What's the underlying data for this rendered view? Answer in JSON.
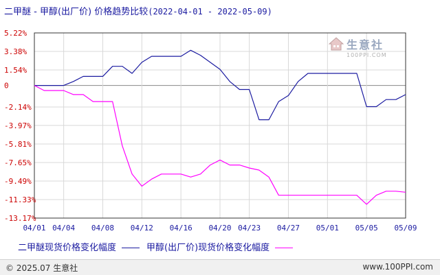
{
  "header": {
    "title": "二甲醚 - 甲醇(出厂价) 价格趋势比较",
    "date_range": "(2022-04-01 - 2022-05-09)"
  },
  "watermark": {
    "brand": "生意社",
    "url": "100PPI.COM",
    "icon": "house-logo-icon"
  },
  "legend": {
    "series1": "二甲醚现货价格变化幅度",
    "series2": "甲醇(出厂价)现货价格变化幅度"
  },
  "footer": {
    "copyright": "© 2025.07 生意社",
    "site": "www.100PPI.com"
  },
  "chart_data": {
    "type": "line",
    "ylim": [
      -13.17,
      5.22
    ],
    "y_ticks": [
      {
        "value": 5.22,
        "label": "5.22%"
      },
      {
        "value": 3.38,
        "label": "3.38%"
      },
      {
        "value": 1.54,
        "label": "1.54%"
      },
      {
        "value": 0,
        "label": "0"
      },
      {
        "value": -2.14,
        "label": "-2.14%"
      },
      {
        "value": -3.97,
        "label": "-3.97%"
      },
      {
        "value": -5.81,
        "label": "-5.81%"
      },
      {
        "value": -7.65,
        "label": "-7.65%"
      },
      {
        "value": -9.49,
        "label": "-9.49%"
      },
      {
        "value": -11.33,
        "label": "-11.33%"
      },
      {
        "value": -13.17,
        "label": "-13.17%"
      }
    ],
    "x_ticks": [
      {
        "date": "2022-04-01",
        "label": "04/01"
      },
      {
        "date": "2022-04-04",
        "label": "04/04"
      },
      {
        "date": "2022-04-08",
        "label": "04/08"
      },
      {
        "date": "2022-04-12",
        "label": "04/12"
      },
      {
        "date": "2022-04-16",
        "label": "04/16"
      },
      {
        "date": "2022-04-20",
        "label": "04/20"
      },
      {
        "date": "2022-04-23",
        "label": "04/23"
      },
      {
        "date": "2022-04-27",
        "label": "04/27"
      },
      {
        "date": "2022-05-01",
        "label": "05/01"
      },
      {
        "date": "2022-05-05",
        "label": "05/05"
      },
      {
        "date": "2022-05-09",
        "label": "05/09"
      }
    ],
    "xlim": [
      "2022-04-01",
      "2022-05-09"
    ],
    "grid": true,
    "legend_position": "bottom",
    "series": [
      {
        "color": "#1a1aa0",
        "points": [
          [
            "2022-04-01",
            0
          ],
          [
            "2022-04-02",
            0
          ],
          [
            "2022-04-03",
            0
          ],
          [
            "2022-04-04",
            0
          ],
          [
            "2022-04-05",
            0.4
          ],
          [
            "2022-04-06",
            0.9
          ],
          [
            "2022-04-07",
            0.9
          ],
          [
            "2022-04-08",
            0.9
          ],
          [
            "2022-04-09",
            1.9
          ],
          [
            "2022-04-10",
            1.9
          ],
          [
            "2022-04-11",
            1.2
          ],
          [
            "2022-04-12",
            2.3
          ],
          [
            "2022-04-13",
            2.9
          ],
          [
            "2022-04-14",
            2.9
          ],
          [
            "2022-04-15",
            2.9
          ],
          [
            "2022-04-16",
            2.9
          ],
          [
            "2022-04-17",
            3.5
          ],
          [
            "2022-04-18",
            3.0
          ],
          [
            "2022-04-19",
            2.3
          ],
          [
            "2022-04-20",
            1.6
          ],
          [
            "2022-04-21",
            0.4
          ],
          [
            "2022-04-22",
            -0.4
          ],
          [
            "2022-04-23",
            -0.4
          ],
          [
            "2022-04-24",
            -3.4
          ],
          [
            "2022-04-25",
            -3.4
          ],
          [
            "2022-04-26",
            -1.6
          ],
          [
            "2022-04-27",
            -1.0
          ],
          [
            "2022-04-28",
            0.4
          ],
          [
            "2022-04-29",
            1.2
          ],
          [
            "2022-04-30",
            1.2
          ],
          [
            "2022-05-01",
            1.2
          ],
          [
            "2022-05-02",
            1.2
          ],
          [
            "2022-05-03",
            1.2
          ],
          [
            "2022-05-04",
            1.2
          ],
          [
            "2022-05-05",
            -2.1
          ],
          [
            "2022-05-06",
            -2.1
          ],
          [
            "2022-05-07",
            -1.4
          ],
          [
            "2022-05-08",
            -1.4
          ],
          [
            "2022-05-09",
            -0.9
          ]
        ]
      },
      {
        "color": "#ff00ff",
        "points": [
          [
            "2022-04-01",
            0
          ],
          [
            "2022-04-02",
            -0.5
          ],
          [
            "2022-04-03",
            -0.5
          ],
          [
            "2022-04-04",
            -0.5
          ],
          [
            "2022-04-05",
            -0.9
          ],
          [
            "2022-04-06",
            -0.9
          ],
          [
            "2022-04-07",
            -1.6
          ],
          [
            "2022-04-08",
            -1.6
          ],
          [
            "2022-04-09",
            -1.6
          ],
          [
            "2022-04-10",
            -6.0
          ],
          [
            "2022-04-11",
            -8.8
          ],
          [
            "2022-04-12",
            -10.0
          ],
          [
            "2022-04-13",
            -9.3
          ],
          [
            "2022-04-14",
            -8.8
          ],
          [
            "2022-04-15",
            -8.8
          ],
          [
            "2022-04-16",
            -8.8
          ],
          [
            "2022-04-17",
            -9.1
          ],
          [
            "2022-04-18",
            -8.8
          ],
          [
            "2022-04-19",
            -7.9
          ],
          [
            "2022-04-20",
            -7.4
          ],
          [
            "2022-04-21",
            -7.9
          ],
          [
            "2022-04-22",
            -7.9
          ],
          [
            "2022-04-23",
            -8.2
          ],
          [
            "2022-04-24",
            -8.4
          ],
          [
            "2022-04-25",
            -9.1
          ],
          [
            "2022-04-26",
            -10.9
          ],
          [
            "2022-04-27",
            -10.9
          ],
          [
            "2022-04-28",
            -10.9
          ],
          [
            "2022-04-29",
            -10.9
          ],
          [
            "2022-04-30",
            -10.9
          ],
          [
            "2022-05-01",
            -10.9
          ],
          [
            "2022-05-02",
            -10.9
          ],
          [
            "2022-05-03",
            -10.9
          ],
          [
            "2022-05-04",
            -10.9
          ],
          [
            "2022-05-05",
            -11.8
          ],
          [
            "2022-05-06",
            -10.9
          ],
          [
            "2022-05-07",
            -10.5
          ],
          [
            "2022-05-08",
            -10.5
          ],
          [
            "2022-05-09",
            -10.6
          ]
        ]
      }
    ]
  }
}
